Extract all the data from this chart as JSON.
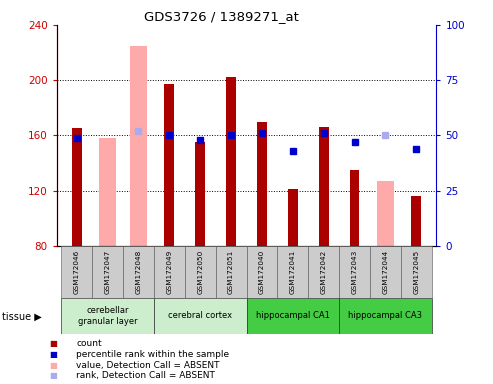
{
  "title": "GDS3726 / 1389271_at",
  "samples": [
    "GSM172046",
    "GSM172047",
    "GSM172048",
    "GSM172049",
    "GSM172050",
    "GSM172051",
    "GSM172040",
    "GSM172041",
    "GSM172042",
    "GSM172043",
    "GSM172044",
    "GSM172045"
  ],
  "count_values": [
    165,
    null,
    null,
    197,
    155,
    202,
    170,
    121,
    166,
    135,
    null,
    116
  ],
  "absent_value": [
    null,
    158,
    225,
    null,
    null,
    null,
    null,
    null,
    null,
    null,
    127,
    null
  ],
  "percentile_rank": [
    49,
    null,
    null,
    50,
    48,
    50,
    51,
    43,
    51,
    47,
    null,
    44
  ],
  "absent_rank": [
    null,
    null,
    52,
    null,
    null,
    null,
    null,
    null,
    null,
    null,
    50,
    null
  ],
  "ylim": [
    80,
    240
  ],
  "yticks": [
    80,
    120,
    160,
    200,
    240
  ],
  "y2lim": [
    0,
    100
  ],
  "y2ticks": [
    0,
    25,
    50,
    75,
    100
  ],
  "tissue_groups": [
    {
      "label": "cerebellar\ngranular layer",
      "start": 0,
      "end": 3,
      "color": "#cceecc"
    },
    {
      "label": "cerebral cortex",
      "start": 3,
      "end": 6,
      "color": "#cceecc"
    },
    {
      "label": "hippocampal CA1",
      "start": 6,
      "end": 9,
      "color": "#44cc44"
    },
    {
      "label": "hippocampal CA3",
      "start": 9,
      "end": 12,
      "color": "#44cc44"
    }
  ],
  "bar_width": 0.32,
  "absent_bar_width": 0.55,
  "count_color": "#aa0000",
  "absent_color": "#ffaaaa",
  "rank_color": "#0000cc",
  "absent_rank_color": "#aaaaee",
  "ylabel_left_color": "#cc0000",
  "ylabel_right_color": "#0000cc",
  "sample_cell_color": "#cccccc",
  "legend_items": [
    {
      "color": "#aa0000",
      "label": "count"
    },
    {
      "color": "#0000cc",
      "label": "percentile rank within the sample"
    },
    {
      "color": "#ffaaaa",
      "label": "value, Detection Call = ABSENT"
    },
    {
      "color": "#aaaaee",
      "label": "rank, Detection Call = ABSENT"
    }
  ]
}
